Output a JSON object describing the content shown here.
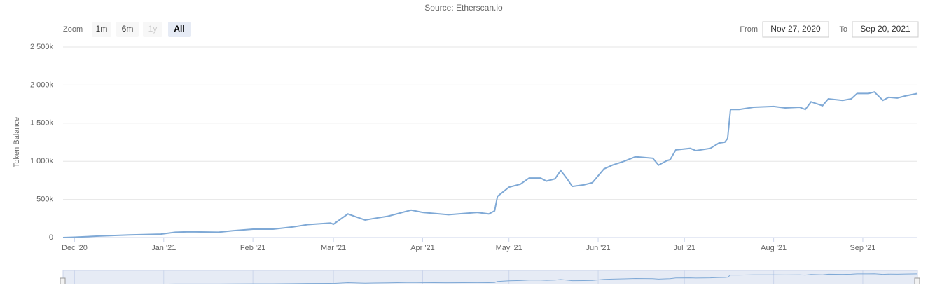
{
  "range_selector": {
    "zoom_label": "Zoom",
    "buttons": [
      "1m",
      "6m",
      "1y",
      "All"
    ],
    "from_label": "From",
    "from": "Nov 27, 2020",
    "to_label": "To",
    "to": "Sep 20, 2021"
  },
  "chart_data": {
    "type": "line",
    "subtitle": "Source: Etherscan.io",
    "y_label": "Token Balance",
    "grid": true,
    "xlim": [
      "2020-11-27",
      "2021-09-20"
    ],
    "xticks": [
      {
        "value": "2020-12-01",
        "label": "Dec '20"
      },
      {
        "value": "2021-01-01",
        "label": "Jan '21"
      },
      {
        "value": "2021-02-01",
        "label": "Feb '21"
      },
      {
        "value": "2021-03-01",
        "label": "Mar '21"
      },
      {
        "value": "2021-04-01",
        "label": "Apr '21"
      },
      {
        "value": "2021-05-01",
        "label": "May '21"
      },
      {
        "value": "2021-06-01",
        "label": "Jun '21"
      },
      {
        "value": "2021-07-01",
        "label": "Jul '21"
      },
      {
        "value": "2021-08-01",
        "label": "Aug '21"
      },
      {
        "value": "2021-09-01",
        "label": "Sep '21"
      }
    ],
    "ylim": [
      0,
      2500000
    ],
    "yticks": [
      0,
      {
        "value": 500000,
        "label": "500k"
      },
      {
        "value": 1000000,
        "label": "1 000k"
      },
      {
        "value": 1500000,
        "label": "1 500k"
      },
      {
        "value": 2000000,
        "label": "2 000k"
      },
      {
        "value": 2500000,
        "label": "2 500k"
      }
    ],
    "x": [
      "2020-11-27",
      "2020-12-01",
      "2020-12-10",
      "2020-12-20",
      "2020-12-31",
      "2021-01-05",
      "2021-01-10",
      "2021-01-20",
      "2021-01-25",
      "2021-02-01",
      "2021-02-08",
      "2021-02-15",
      "2021-02-20",
      "2021-02-28",
      "2021-03-01",
      "2021-03-06",
      "2021-03-12",
      "2021-03-15",
      "2021-03-20",
      "2021-03-28",
      "2021-04-01",
      "2021-04-10",
      "2021-04-20",
      "2021-04-24",
      "2021-04-26",
      "2021-04-27",
      "2021-05-01",
      "2021-05-05",
      "2021-05-08",
      "2021-05-12",
      "2021-05-14",
      "2021-05-17",
      "2021-05-19",
      "2021-05-21",
      "2021-05-23",
      "2021-05-27",
      "2021-05-30",
      "2021-06-03",
      "2021-06-06",
      "2021-06-10",
      "2021-06-14",
      "2021-06-20",
      "2021-06-22",
      "2021-06-25",
      "2021-06-26",
      "2021-06-28",
      "2021-07-03",
      "2021-07-05",
      "2021-07-10",
      "2021-07-13",
      "2021-07-15",
      "2021-07-16",
      "2021-07-17",
      "2021-07-20",
      "2021-07-25",
      "2021-08-01",
      "2021-08-05",
      "2021-08-10",
      "2021-08-12",
      "2021-08-14",
      "2021-08-18",
      "2021-08-20",
      "2021-08-25",
      "2021-08-28",
      "2021-08-30",
      "2021-09-03",
      "2021-09-05",
      "2021-09-08",
      "2021-09-10",
      "2021-09-13",
      "2021-09-16",
      "2021-09-20"
    ],
    "series": [
      {
        "name": "Token Balance",
        "color": "#7fa9d6",
        "values": [
          0,
          5000,
          20000,
          35000,
          45000,
          70000,
          75000,
          70000,
          90000,
          110000,
          110000,
          140000,
          170000,
          190000,
          175000,
          310000,
          230000,
          250000,
          280000,
          360000,
          330000,
          300000,
          330000,
          310000,
          350000,
          540000,
          660000,
          700000,
          780000,
          780000,
          740000,
          770000,
          880000,
          780000,
          670000,
          690000,
          720000,
          900000,
          950000,
          1000000,
          1060000,
          1040000,
          950000,
          1010000,
          1020000,
          1150000,
          1170000,
          1140000,
          1170000,
          1240000,
          1250000,
          1300000,
          1680000,
          1680000,
          1710000,
          1720000,
          1700000,
          1710000,
          1680000,
          1780000,
          1730000,
          1820000,
          1800000,
          1820000,
          1890000,
          1890000,
          1910000,
          1800000,
          1840000,
          1830000,
          1860000,
          1890000
        ]
      }
    ]
  }
}
